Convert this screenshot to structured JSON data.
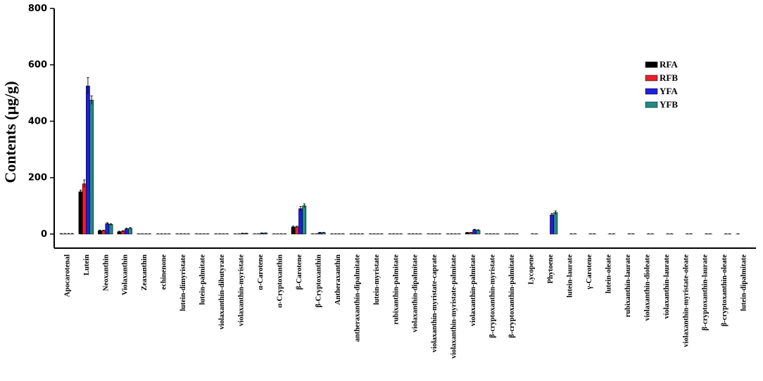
{
  "chart_data": {
    "type": "bar",
    "title": "",
    "xlabel": "",
    "ylabel": "Contents (μg/g)",
    "ylim": [
      -50,
      800
    ],
    "yticks": [
      0,
      200,
      400,
      600,
      800
    ],
    "grid": false,
    "legend_position": "top-right",
    "categories": [
      "Apocarotenal",
      "Lutein",
      "Neoxanthin",
      "Violaxanthin",
      "Zeaxanthin",
      "echinenone",
      "lutein-dimyristate",
      "lutein-palmitate",
      "violaxanthin-dibutyrate",
      "violaxanthin-myristate",
      "α-Carotene",
      "α-Cryptoxanthin",
      "β-Carotene",
      "β-Cryptoxanthin",
      "Antheraxanthin",
      "antheraxanthin-dipalmitate",
      "lutein-myristate",
      "rubixanthin-palmitate",
      "violaxanthin-dipalmitate",
      "violaxanthin-myristate-caprate",
      "violaxanthin-myristate-palmitate",
      "violaxanthin-palmitate",
      "β-cryptoxanthin-myristate",
      "β-cryptoxanthin-palmitate",
      "Lycopene",
      "Phytoene",
      "lutein-laurate",
      "γ-Carotene",
      "lutein-oleate",
      "rubixanthin-laurate",
      "violaxanthin-dioleate",
      "violaxanthin-laurate",
      "violaxanthin-myristate-oleate",
      "β-cryptoxanthin-laurate",
      "β-cryptoxanthin-oleate",
      "lutein-dipalmitate"
    ],
    "series": [
      {
        "name": "RFA",
        "color": "#000000",
        "values": [
          0,
          150,
          12,
          8,
          0,
          0,
          0,
          0,
          0,
          0,
          0,
          0,
          25,
          0,
          0,
          0,
          0,
          0,
          0,
          0,
          0,
          5,
          0,
          0,
          null,
          null,
          null,
          null,
          null,
          null,
          null,
          null,
          null,
          null,
          null,
          0
        ],
        "errors": [
          2,
          6,
          2,
          2,
          1,
          1,
          1,
          1,
          1,
          1,
          1,
          1,
          3,
          1,
          1,
          1,
          1,
          1,
          1,
          1,
          1,
          1,
          1,
          1,
          null,
          null,
          null,
          null,
          null,
          null,
          null,
          null,
          null,
          null,
          null,
          1
        ]
      },
      {
        "name": "RFB",
        "color": "#e8202a",
        "values": [
          0,
          178,
          12,
          10,
          0,
          0,
          0,
          0,
          0,
          0,
          0,
          0,
          25,
          0,
          0,
          0,
          0,
          0,
          0,
          0,
          0,
          5,
          0,
          0,
          null,
          null,
          null,
          null,
          null,
          null,
          null,
          null,
          null,
          null,
          null,
          null
        ],
        "errors": [
          2,
          14,
          2,
          2,
          1,
          1,
          1,
          1,
          1,
          1,
          1,
          1,
          3,
          1,
          1,
          1,
          1,
          1,
          1,
          1,
          1,
          1,
          1,
          1,
          null,
          null,
          null,
          null,
          null,
          null,
          null,
          null,
          null,
          null,
          null,
          null
        ]
      },
      {
        "name": "YFA",
        "color": "#1f1fe0",
        "values": [
          0,
          525,
          37,
          18,
          0,
          0,
          0,
          0,
          0,
          2,
          3,
          0,
          90,
          5,
          0,
          0,
          0,
          0,
          0,
          0,
          0,
          15,
          0,
          0,
          0,
          68,
          0,
          0,
          0,
          0,
          0,
          0,
          0,
          0,
          0,
          null
        ],
        "errors": [
          2,
          30,
          3,
          3,
          1,
          1,
          1,
          1,
          1,
          1,
          1,
          1,
          8,
          1,
          1,
          1,
          1,
          1,
          1,
          1,
          1,
          2,
          1,
          1,
          1,
          5,
          1,
          1,
          1,
          1,
          1,
          1,
          1,
          1,
          1,
          null
        ]
      },
      {
        "name": "YFB",
        "color": "#1f8c84",
        "values": [
          0,
          475,
          34,
          20,
          0,
          0,
          0,
          0,
          0,
          2,
          3,
          0,
          100,
          5,
          0,
          0,
          0,
          0,
          0,
          0,
          0,
          13,
          0,
          0,
          0,
          76,
          0,
          0,
          0,
          0,
          0,
          0,
          0,
          0,
          0,
          null
        ],
        "errors": [
          2,
          15,
          3,
          3,
          1,
          1,
          1,
          1,
          1,
          1,
          1,
          1,
          7,
          1,
          1,
          1,
          1,
          1,
          1,
          1,
          1,
          2,
          1,
          1,
          1,
          6,
          1,
          1,
          1,
          1,
          1,
          1,
          1,
          1,
          1,
          null
        ]
      }
    ]
  }
}
